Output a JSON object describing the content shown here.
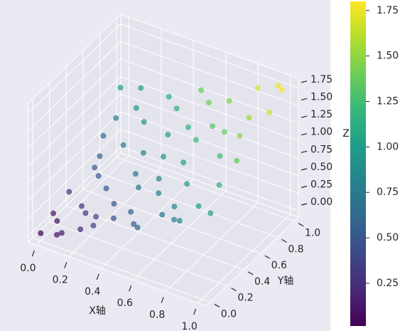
{
  "chart_data": {
    "type": "scatter3d",
    "xlabel": "X轴",
    "ylabel": "Y轴",
    "zlabel": "Z",
    "x": [
      0.05,
      0.12,
      0.02,
      0.2,
      0.08,
      0.3,
      0.15,
      0.25,
      0.4,
      0.05,
      0.45,
      0.35,
      0.55,
      0.6,
      0.1,
      0.5,
      0.7,
      0.25,
      0.65,
      0.8,
      0.4,
      0.75,
      0.9,
      0.55,
      0.85,
      0.95,
      0.7,
      0.9,
      1.0,
      0.95,
      0.3,
      0.15,
      0.0,
      0.1,
      0.0,
      0.22,
      0.35,
      0.48,
      0.6,
      0.75,
      0.85,
      1.0,
      0.98,
      0.8,
      0.6,
      0.45,
      0.2,
      0.05,
      0.0,
      0.15,
      0.5,
      0.85,
      0.65,
      0.38,
      0.28,
      0.7,
      0.92,
      1.0,
      0.1,
      0.55
    ],
    "y": [
      0.1,
      0.02,
      0.3,
      0.15,
      0.55,
      0.05,
      0.4,
      0.3,
      0.1,
      0.8,
      0.3,
      0.55,
      0.05,
      0.25,
      1.0,
      0.5,
      0.1,
      0.75,
      0.45,
      0.05,
      0.85,
      0.3,
      0.15,
      0.7,
      0.5,
      0.3,
      0.9,
      0.75,
      0.95,
      1.0,
      0.95,
      0.2,
      0.0,
      0.0,
      0.15,
      0.05,
      0.2,
      0.15,
      0.0,
      0.15,
      0.02,
      0.1,
      0.45,
      0.65,
      0.85,
      0.65,
      0.6,
      0.65,
      0.95,
      0.85,
      0.95,
      0.95,
      0.6,
      0.4,
      0.12,
      0.7,
      0.6,
      0.8,
      0.45,
      0.35
    ],
    "z": [
      0.12,
      0.1,
      0.28,
      0.3,
      0.55,
      0.32,
      0.5,
      0.52,
      0.45,
      0.78,
      0.7,
      0.82,
      0.55,
      0.8,
      1.02,
      0.95,
      0.75,
      0.95,
      1.05,
      0.82,
      1.15,
      1.0,
      0.98,
      1.18,
      1.25,
      1.15,
      1.45,
      1.55,
      1.8,
      1.76,
      1.12,
      0.3,
      0.02,
      0.08,
      0.13,
      0.2,
      0.5,
      0.55,
      0.6,
      0.85,
      0.88,
      1.02,
      1.35,
      1.38,
      1.4,
      1.05,
      0.75,
      0.7,
      1.0,
      0.95,
      1.38,
      1.7,
      1.2,
      0.72,
      0.35,
      1.32,
      1.48,
      1.65,
      0.52,
      0.85
    ],
    "xlim": [
      -0.05,
      1.05
    ],
    "ylim": [
      -0.05,
      1.05
    ],
    "zlim": [
      -0.09,
      1.89
    ],
    "xticks": [
      {
        "value": 0,
        "label": "0.0"
      },
      0.2,
      0.4,
      0.6,
      0.8,
      {
        "value": 1,
        "label": "1.0"
      }
    ],
    "yticks": [
      {
        "value": 0,
        "label": "0.0"
      },
      0.2,
      0.4,
      0.6,
      0.8,
      {
        "value": 1,
        "label": "1.0"
      }
    ],
    "zticks": [
      {
        "value": 0,
        "label": "0.00"
      },
      0.25,
      {
        "value": 0.5,
        "label": "0.50"
      },
      0.75,
      {
        "value": 1,
        "label": "1.00"
      },
      1.25,
      {
        "value": 1.5,
        "label": "1.50"
      },
      1.75
    ],
    "colormap": "viridis",
    "clim": [
      0.015,
      1.8
    ],
    "cbar_ticks": [
      0.25,
      {
        "value": 0.5,
        "label": "0.50"
      },
      0.75,
      {
        "value": 1,
        "label": "1.00"
      },
      1.25,
      {
        "value": 1.5,
        "label": "1.50"
      },
      1.75
    ],
    "grid": true
  }
}
